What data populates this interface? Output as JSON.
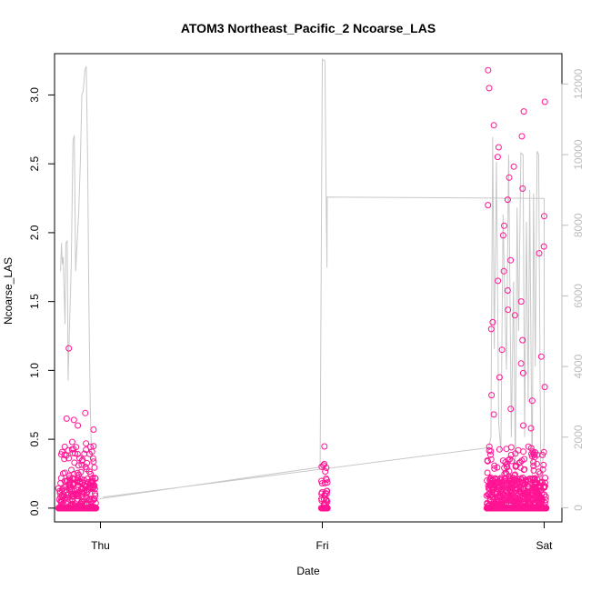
{
  "chart_data": {
    "type": "scatter",
    "title": "ATOM3 Northeast_Pacific_2 Ncoarse_LAS",
    "xlabel": "Date",
    "ylabel": "Ncoarse_LAS",
    "x_ticks": [
      {
        "label": "Thu",
        "value": 0
      },
      {
        "label": "Fri",
        "value": 1
      },
      {
        "label": "Sat",
        "value": 2
      }
    ],
    "xlim": [
      -0.207,
      2.08
    ],
    "ylim": [
      -0.1,
      3.3
    ],
    "y_ticks": [
      0.0,
      0.5,
      1.0,
      1.5,
      2.0,
      2.5,
      3.0
    ],
    "y_tick_labels": [
      "0.0",
      "0.5",
      "1.0",
      "1.5",
      "2.0",
      "2.5",
      "3.0"
    ],
    "y2lim": [
      -400,
      12860
    ],
    "y2_ticks": [
      0,
      2000,
      4000,
      6000,
      8000,
      10000,
      12000
    ],
    "y2_tick_labels": [
      "0",
      "2000",
      "4000",
      "6000",
      "8000",
      "10000",
      "12000"
    ],
    "grid": false,
    "colors": {
      "points": "#ff1493",
      "altitude_line": "#c8c8c8",
      "axis": "#000000",
      "right_axis": "#bdbdbd"
    },
    "series": [
      {
        "kind": "points",
        "clusters": [
          {
            "x0": -0.19,
            "x1": -0.02,
            "n": 420,
            "seed": 11,
            "highs": [
              0.69,
              0.65,
              0.6,
              0.57,
              0.48,
              0.47,
              0.45,
              0.42,
              1.16,
              0.64,
              0.41,
              0.4,
              0.39,
              0.35,
              0.33,
              0.3
            ]
          },
          {
            "x0": 0.995,
            "x1": 1.025,
            "n": 60,
            "seed": 23,
            "highs": [
              0.32,
              0.31,
              0.3,
              0.11
            ]
          },
          {
            "x0": 1.74,
            "x1": 2.01,
            "n": 900,
            "seed": 37,
            "highs": [
              3.18,
              3.05,
              2.95,
              2.88,
              2.78,
              2.7,
              2.62,
              2.55,
              2.48,
              2.4,
              2.32,
              2.24,
              2.2,
              2.12,
              2.05,
              1.98,
              1.9,
              1.85,
              1.8,
              1.72,
              1.65,
              1.58,
              1.5,
              1.44,
              1.4,
              1.35,
              1.3,
              1.22,
              1.15,
              1.1,
              1.05,
              0.98,
              0.95,
              0.88,
              0.82,
              0.78,
              0.72,
              0.68,
              0.6,
              0.58
            ]
          }
        ]
      },
      {
        "kind": "line",
        "axis": "right",
        "points": [
          [
            -0.18,
            6700
          ],
          [
            -0.176,
            7500
          ],
          [
            -0.172,
            6900
          ],
          [
            -0.168,
            7100
          ],
          [
            -0.16,
            5200
          ],
          [
            -0.156,
            7500
          ],
          [
            -0.15,
            7550
          ],
          [
            -0.146,
            3600
          ],
          [
            -0.14,
            5000
          ],
          [
            -0.132,
            6800
          ],
          [
            -0.124,
            10400
          ],
          [
            -0.118,
            10550
          ],
          [
            -0.112,
            6700
          ],
          [
            -0.106,
            7400
          ],
          [
            -0.098,
            8400
          ],
          [
            -0.09,
            9900
          ],
          [
            -0.084,
            11700
          ],
          [
            -0.078,
            11800
          ],
          [
            -0.07,
            12400
          ],
          [
            -0.064,
            12500
          ],
          [
            -0.058,
            9800
          ],
          [
            -0.052,
            5700
          ],
          [
            -0.046,
            2800
          ],
          [
            -0.04,
            1500
          ],
          [
            -0.034,
            700
          ],
          [
            -0.028,
            300
          ],
          [
            -0.02,
            200
          ],
          [
            -0.01,
            250
          ],
          [
            0.99,
            1150
          ],
          [
            1.0,
            12700
          ],
          [
            1.012,
            12650
          ],
          [
            1.018,
            8300
          ],
          [
            1.021,
            6800
          ],
          [
            1.022,
            8800
          ],
          [
            2.0,
            8760
          ],
          [
            2.0,
            1900
          ],
          [
            1.985,
            500
          ],
          [
            1.975,
            10000
          ],
          [
            1.968,
            10100
          ],
          [
            1.96,
            4000
          ],
          [
            1.952,
            8900
          ],
          [
            1.946,
            400
          ],
          [
            1.935,
            9000
          ],
          [
            1.928,
            3000
          ],
          [
            1.92,
            8100
          ],
          [
            1.912,
            2000
          ],
          [
            1.905,
            10000
          ],
          [
            1.895,
            10050
          ],
          [
            1.885,
            5000
          ],
          [
            1.878,
            8500
          ],
          [
            1.87,
            1000
          ],
          [
            1.862,
            6400
          ],
          [
            1.852,
            2000
          ],
          [
            1.84,
            10000
          ],
          [
            1.83,
            3900
          ],
          [
            1.822,
            6000
          ],
          [
            1.815,
            8300
          ],
          [
            1.805,
            1600
          ],
          [
            1.795,
            2400
          ],
          [
            1.785,
            9800
          ],
          [
            1.775,
            4500
          ],
          [
            1.768,
            10500
          ],
          [
            1.76,
            2000
          ],
          [
            1.75,
            1700
          ],
          [
            0.01,
            300
          ]
        ]
      }
    ]
  }
}
